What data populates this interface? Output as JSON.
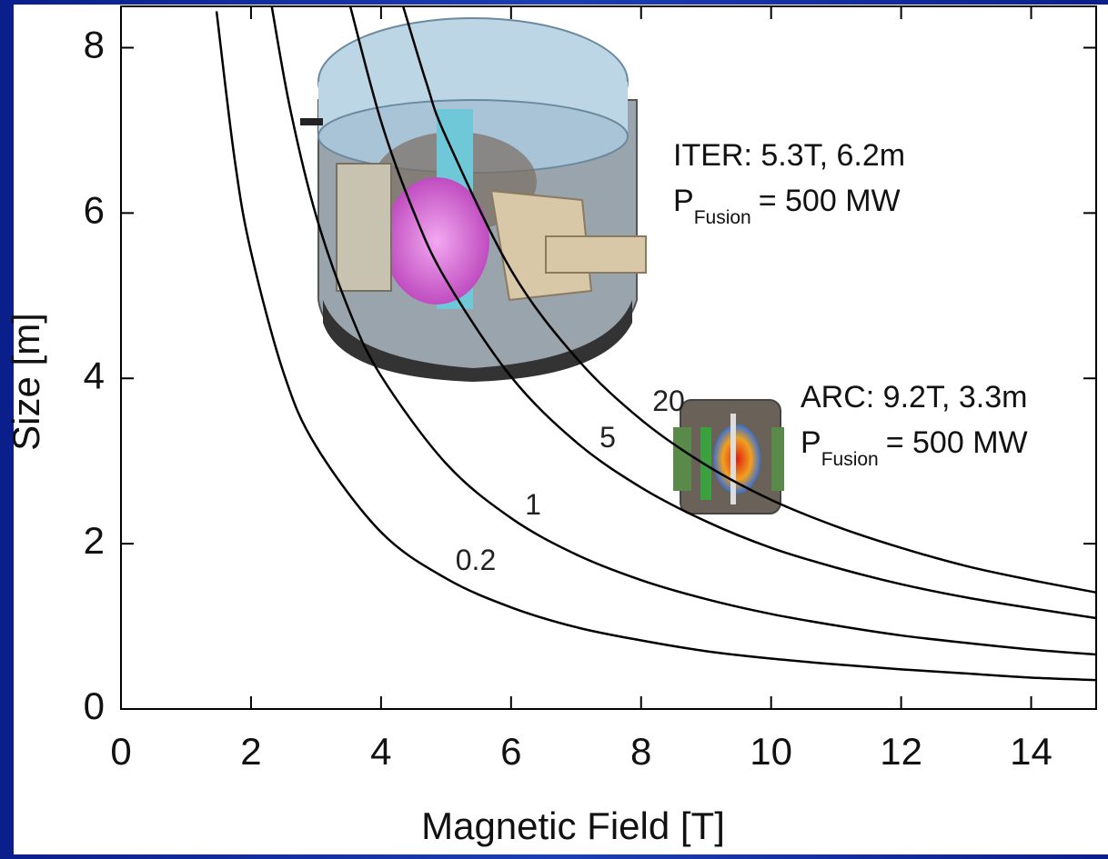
{
  "chart_data": {
    "type": "line",
    "xlabel": "Magnetic Field [T]",
    "ylabel": "Size [m]",
    "xlim": [
      0,
      15
    ],
    "ylim": [
      0,
      8.5
    ],
    "xticks": [
      0,
      2,
      4,
      6,
      8,
      10,
      12,
      14
    ],
    "yticks": [
      0,
      2,
      4,
      6,
      8
    ],
    "color": "#000000",
    "series": [
      {
        "name": "20",
        "x": [
          4.34,
          4.7,
          5,
          6,
          7,
          8,
          9,
          10,
          11,
          12,
          13,
          14,
          15
        ],
        "values": [
          8.5,
          7.57,
          6.92,
          5.31,
          4.25,
          3.5,
          2.95,
          2.53,
          2.21,
          1.95,
          1.73,
          1.56,
          1.41
        ]
      },
      {
        "name": "5",
        "x": [
          3.52,
          4,
          4.5,
          5,
          6,
          7,
          8,
          9,
          10,
          11,
          12,
          13,
          14,
          15
        ],
        "values": [
          8.52,
          7.11,
          6.02,
          5.19,
          4.02,
          3.23,
          2.68,
          2.27,
          1.95,
          1.71,
          1.51,
          1.35,
          1.22,
          1.1
        ]
      },
      {
        "name": "1",
        "x": [
          2.31,
          2.6,
          3,
          3.5,
          4,
          5,
          6,
          7,
          8,
          9,
          10,
          11,
          12,
          13,
          14,
          15
        ],
        "values": [
          8.54,
          7.27,
          5.97,
          4.84,
          4.03,
          2.97,
          2.31,
          1.87,
          1.56,
          1.33,
          1.15,
          1.01,
          0.89,
          0.8,
          0.72,
          0.66
        ]
      },
      {
        "name": "0.2",
        "x": [
          1.47,
          1.75,
          2,
          2.5,
          3,
          4,
          5,
          6,
          7,
          8,
          9,
          10,
          11,
          12,
          13,
          14,
          15
        ],
        "values": [
          8.44,
          6.64,
          5.53,
          4.07,
          3.18,
          2.14,
          1.58,
          1.23,
          0.99,
          0.83,
          0.7,
          0.61,
          0.54,
          0.48,
          0.43,
          0.38,
          0.35
        ]
      }
    ],
    "annotations": [
      {
        "title": "ITER: 5.3T, 6.2m",
        "symbol": "P",
        "subscript": "Fusion",
        "text": "= 500 MW"
      },
      {
        "title": "ARC: 9.2T, 3.3m",
        "symbol": "P",
        "subscript": "Fusion",
        "text": "= 500 MW"
      }
    ]
  }
}
